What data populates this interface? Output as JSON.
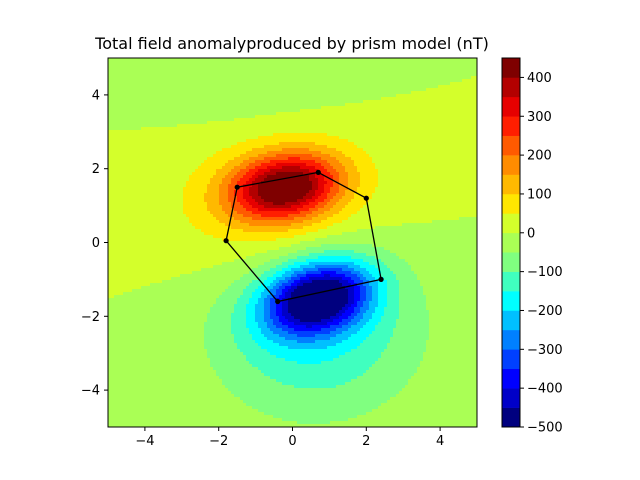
{
  "chart_data": {
    "type": "heatmap",
    "title": "Total field anomalyproduced by prism model (nT)",
    "xlabel": "",
    "ylabel": "",
    "xlim": [
      -5,
      5
    ],
    "ylim": [
      -5,
      5
    ],
    "x_ticks": [
      -4,
      -2,
      0,
      2,
      4
    ],
    "y_ticks": [
      -4,
      -2,
      0,
      2,
      4
    ],
    "x_tick_labels": [
      "−4",
      "−2",
      "0",
      "2",
      "4"
    ],
    "y_tick_labels": [
      "−4",
      "−2",
      "0",
      "2",
      "4"
    ],
    "grid": false,
    "colormap": "jet",
    "colorbar": {
      "range": [
        -500,
        450
      ],
      "levels": [
        -500,
        -450,
        -400,
        -350,
        -300,
        -250,
        -200,
        -150,
        -100,
        -50,
        0,
        50,
        100,
        150,
        200,
        250,
        300,
        350,
        400,
        450
      ],
      "ticks": [
        -500,
        -400,
        -300,
        -200,
        -100,
        0,
        100,
        200,
        300,
        400
      ],
      "tick_labels": [
        "−500",
        "−400",
        "−300",
        "−200",
        "−100",
        "0",
        "100",
        "200",
        "300",
        "400"
      ],
      "colors": [
        "#00007f",
        "#0000c8",
        "#0000ff",
        "#0040ff",
        "#0080ff",
        "#00c0ff",
        "#00ffff",
        "#40ffbf",
        "#80ff80",
        "#aaff55",
        "#d4ff2b",
        "#ffe600",
        "#ffb900",
        "#ff8c00",
        "#ff5a00",
        "#ff1e00",
        "#e60000",
        "#b30000",
        "#7f0000"
      ]
    },
    "polygon": {
      "vertices": [
        [
          0.7,
          1.9
        ],
        [
          2.0,
          1.2
        ],
        [
          2.4,
          -1.0
        ],
        [
          -0.4,
          -1.6
        ],
        [
          -1.8,
          0.05
        ],
        [
          -1.5,
          1.5
        ]
      ],
      "color": "#000000"
    },
    "field": {
      "positive_peak": {
        "x": -0.2,
        "y": 1.5,
        "value": 430
      },
      "negative_peak": {
        "x": 0.7,
        "y": -1.5,
        "value": -480
      }
    }
  }
}
